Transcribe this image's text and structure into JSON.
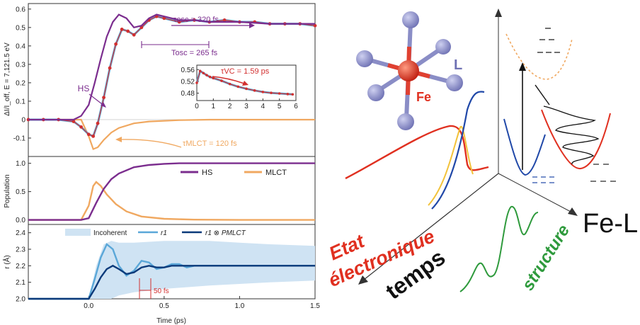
{
  "chart_data": [
    {
      "type": "line",
      "panel": "top",
      "ylabel": "ΔI/I_off, E = 7,121.5 eV",
      "xlim": [
        -0.4,
        1.5
      ],
      "ylim": [
        -0.2,
        0.63
      ],
      "yticks": [
        "0.6",
        "0.5",
        "0.4",
        "0.3",
        "0.2",
        "0.1",
        "0",
        "-0.1"
      ],
      "ytick_values": [
        0.6,
        0.5,
        0.4,
        0.3,
        0.2,
        0.1,
        0,
        -0.1
      ],
      "colors": {
        "hs": "#7b2d8e",
        "mlct": "#f0a860",
        "data": "#d23030",
        "fit": "#5aa7d8"
      },
      "annotations": {
        "hs": "HS",
        "tau_osc": "τosc = 320 fs",
        "t_osc": "Tosc = 265 fs",
        "tau_mlct": "τMLCT = 120 fs",
        "tau_vc": "τVC = 1.59 ps"
      },
      "series": [
        {
          "name": "data",
          "x": [
            -0.4,
            -0.3,
            -0.2,
            -0.1,
            -0.05,
            0,
            0.03,
            0.06,
            0.1,
            0.14,
            0.18,
            0.22,
            0.26,
            0.3,
            0.35,
            0.4,
            0.45,
            0.5,
            0.6,
            0.7,
            0.8,
            0.9,
            1.0,
            1.1,
            1.2,
            1.3,
            1.4,
            1.5
          ],
          "y": [
            0,
            0,
            0,
            -0.01,
            -0.04,
            -0.08,
            -0.09,
            -0.02,
            0.12,
            0.28,
            0.41,
            0.49,
            0.48,
            0.46,
            0.5,
            0.54,
            0.56,
            0.55,
            0.53,
            0.54,
            0.53,
            0.54,
            0.53,
            0.53,
            0.52,
            0.52,
            0.52,
            0.51
          ]
        },
        {
          "name": "HS",
          "x": [
            -0.4,
            -0.1,
            -0.05,
            0,
            0.04,
            0.08,
            0.12,
            0.16,
            0.2,
            0.25,
            0.3,
            0.35,
            0.4,
            0.45,
            0.5,
            0.6,
            0.7,
            0.8,
            0.9,
            1.0,
            1.2,
            1.5
          ],
          "y": [
            0,
            0,
            0.02,
            0.08,
            0.2,
            0.33,
            0.45,
            0.53,
            0.57,
            0.55,
            0.5,
            0.51,
            0.55,
            0.57,
            0.56,
            0.54,
            0.54,
            0.53,
            0.53,
            0.53,
            0.52,
            0.52
          ]
        },
        {
          "name": "MLCT",
          "x": [
            -0.4,
            -0.05,
            0,
            0.03,
            0.06,
            0.1,
            0.15,
            0.2,
            0.3,
            0.4,
            0.6,
            0.8,
            1.0,
            1.5
          ],
          "y": [
            0,
            0,
            -0.09,
            -0.16,
            -0.15,
            -0.11,
            -0.07,
            -0.045,
            -0.02,
            -0.01,
            -0.003,
            0,
            0,
            0
          ]
        }
      ],
      "inset": {
        "xlim": [
          0,
          6
        ],
        "ylim": [
          0.455,
          0.575
        ],
        "xticks": [
          0,
          1,
          2,
          3,
          4,
          5,
          6
        ],
        "yticks": [
          0.56,
          0.52,
          0.48
        ],
        "ytick_labels": [
          "0.56",
          "0.52",
          "0.48"
        ],
        "x": [
          0,
          0.2,
          0.4,
          0.6,
          0.8,
          1.0,
          1.5,
          2.0,
          2.5,
          3.0,
          3.5,
          4.0,
          4.5,
          5.0,
          5.5,
          5.8
        ],
        "y": [
          0.515,
          0.555,
          0.548,
          0.541,
          0.535,
          0.531,
          0.522,
          0.511,
          0.502,
          0.495,
          0.489,
          0.484,
          0.481,
          0.479,
          0.477,
          0.476
        ]
      }
    },
    {
      "type": "line",
      "panel": "middle",
      "ylabel": "Population",
      "xlim": [
        -0.4,
        1.5
      ],
      "ylim": [
        -0.08,
        1.12
      ],
      "yticks": [
        "1.0",
        "0.5",
        "0.0"
      ],
      "ytick_values": [
        1.0,
        0.5,
        0.0
      ],
      "series": [
        {
          "name": "HS",
          "x": [
            -0.4,
            -0.05,
            0,
            0.05,
            0.1,
            0.15,
            0.2,
            0.3,
            0.4,
            0.5,
            0.6,
            0.8,
            1.0,
            1.5
          ],
          "y": [
            0,
            0,
            0.03,
            0.3,
            0.55,
            0.72,
            0.82,
            0.93,
            0.97,
            0.99,
            1.0,
            1.0,
            1.0,
            1.0
          ]
        },
        {
          "name": "MLCT",
          "x": [
            -0.4,
            -0.05,
            0,
            0.03,
            0.05,
            0.08,
            0.12,
            0.18,
            0.25,
            0.35,
            0.5,
            0.7,
            1.0,
            1.5
          ],
          "y": [
            0,
            0,
            0.25,
            0.6,
            0.67,
            0.6,
            0.45,
            0.28,
            0.15,
            0.06,
            0.02,
            0.005,
            0,
            0
          ]
        }
      ]
    },
    {
      "type": "line",
      "panel": "bottom",
      "xlabel": "Time (ps)",
      "ylabel": "r (Å)",
      "xlim": [
        -0.4,
        1.5
      ],
      "ylim": [
        2.0,
        2.45
      ],
      "xticks": [
        "0.0",
        "0.5",
        "1.0",
        "1.5"
      ],
      "xtick_values": [
        0.0,
        0.5,
        1.0,
        1.5
      ],
      "yticks": [
        "2.4",
        "2.3",
        "2.2",
        "2.1",
        "2.0"
      ],
      "ytick_values": [
        2.4,
        2.3,
        2.2,
        2.1,
        2.0
      ],
      "legend": {
        "incoherent": "Incoherent",
        "r1": "r1",
        "conv": "r1 ⊗ PMLCT"
      },
      "annotation": "50 fs",
      "band": {
        "x": [
          0,
          0.05,
          0.1,
          0.15,
          0.2,
          0.3,
          0.5,
          0.8,
          1.0,
          1.2,
          1.5
        ],
        "upper": [
          2.0,
          2.2,
          2.33,
          2.35,
          2.34,
          2.34,
          2.35,
          2.35,
          2.34,
          2.33,
          2.32
        ],
        "lower": [
          2.0,
          2.0,
          2.0,
          2.0,
          2.02,
          2.04,
          2.06,
          2.08,
          2.09,
          2.1,
          2.11
        ]
      },
      "series": [
        {
          "name": "r1",
          "x": [
            -0.4,
            0,
            0.04,
            0.08,
            0.12,
            0.16,
            0.2,
            0.25,
            0.3,
            0.35,
            0.4,
            0.45,
            0.5,
            0.55,
            0.6,
            0.65,
            0.7,
            0.8,
            0.9,
            1.0,
            1.2,
            1.5
          ],
          "y": [
            2.0,
            2.0,
            2.12,
            2.25,
            2.33,
            2.3,
            2.2,
            2.14,
            2.17,
            2.23,
            2.22,
            2.18,
            2.19,
            2.21,
            2.21,
            2.19,
            2.2,
            2.2,
            2.2,
            2.2,
            2.2,
            2.2
          ]
        },
        {
          "name": "r1 ⊗ PMLCT",
          "x": [
            -0.4,
            0,
            0.04,
            0.08,
            0.12,
            0.16,
            0.2,
            0.25,
            0.3,
            0.35,
            0.4,
            0.45,
            0.5,
            0.55,
            0.6,
            0.7,
            0.8,
            1.0,
            1.2,
            1.5
          ],
          "y": [
            2.0,
            2.0,
            2.06,
            2.13,
            2.18,
            2.2,
            2.18,
            2.15,
            2.16,
            2.19,
            2.2,
            2.19,
            2.19,
            2.2,
            2.2,
            2.2,
            2.2,
            2.2,
            2.2,
            2.2
          ]
        }
      ]
    }
  ],
  "schematic": {
    "molecule": {
      "ligand_label": "L",
      "metal_label": "Fe"
    },
    "axes": {
      "x_label": "Fe-L",
      "time_label": "temps",
      "electronic_label": "Etat électronique",
      "structure_label": "structure"
    },
    "colors": {
      "red": "#e03020",
      "green": "#2e9a3c",
      "blue": "#2048a8",
      "ligand": "#8a8dc6",
      "metal": "#e04030"
    }
  }
}
